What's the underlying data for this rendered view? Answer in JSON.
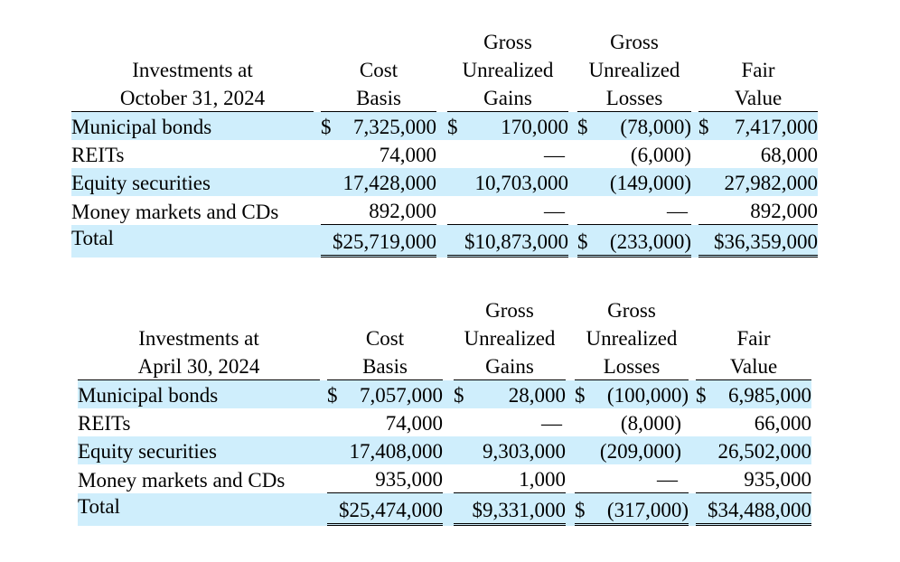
{
  "tables": [
    {
      "id": "oct2024",
      "header": {
        "label_line1": "Investments at",
        "label_line2": "October 31, 2024",
        "cost_line1": "Cost",
        "cost_line2": "Basis",
        "gains_line1": "Gross",
        "gains_line2": "Unrealized",
        "gains_line3": "Gains",
        "losses_line1": "Gross",
        "losses_line2": "Unrealized",
        "losses_line3": "Losses",
        "fair_line1": "Fair",
        "fair_line2": "Value"
      },
      "rows": [
        {
          "label": "Municipal bonds",
          "cost_cur": "$",
          "cost": "7,325,000",
          "gains_cur": "$",
          "gains": "170,000",
          "losses_cur": "$",
          "losses": "(78,000)",
          "fair_cur": "$",
          "fair": "7,417,000"
        },
        {
          "label": "REITs",
          "cost_cur": "",
          "cost": "74,000",
          "gains_cur": "",
          "gains": "—",
          "losses_cur": "",
          "losses": "(6,000)",
          "fair_cur": "",
          "fair": "68,000"
        },
        {
          "label": "Equity securities",
          "cost_cur": "",
          "cost": "17,428,000",
          "gains_cur": "",
          "gains": "10,703,000",
          "losses_cur": "",
          "losses": "(149,000)",
          "fair_cur": "",
          "fair": "27,982,000"
        },
        {
          "label": "Money markets and CDs",
          "cost_cur": "",
          "cost": "892,000",
          "gains_cur": "",
          "gains": "—",
          "losses_cur": "",
          "losses": "—",
          "fair_cur": "",
          "fair": "892,000"
        }
      ],
      "total": {
        "label": "Total",
        "cost": "$25,719,000",
        "gains": "$10,873,000",
        "losses_cur": "$",
        "losses": "(233,000)",
        "fair": "$36,359,000"
      }
    },
    {
      "id": "apr2024",
      "header": {
        "label_line1": "Investments at",
        "label_line2": "April 30, 2024",
        "cost_line1": "Cost",
        "cost_line2": "Basis",
        "gains_line1": "Gross",
        "gains_line2": "Unrealized",
        "gains_line3": "Gains",
        "losses_line1": "Gross",
        "losses_line2": "Unrealized",
        "losses_line3": "Losses",
        "fair_line1": "Fair",
        "fair_line2": "Value"
      },
      "rows": [
        {
          "label": "Municipal bonds",
          "cost_cur": "$",
          "cost": "7,057,000",
          "gains_cur": "$",
          "gains": "28,000",
          "losses_cur": "$",
          "losses": "(100,000)",
          "fair_cur": "$",
          "fair": "6,985,000"
        },
        {
          "label": "REITs",
          "cost_cur": "",
          "cost": "74,000",
          "gains_cur": "",
          "gains": "—",
          "losses_cur": "",
          "losses": "(8,000)",
          "fair_cur": "",
          "fair": "66,000"
        },
        {
          "label": "Equity securities",
          "cost_cur": "",
          "cost": "17,408,000",
          "gains_cur": "",
          "gains": "9,303,000",
          "losses_cur": "",
          "losses": "(209,000)",
          "fair_cur": "",
          "fair": "26,502,000"
        },
        {
          "label": "Money markets and CDs",
          "cost_cur": "",
          "cost": "935,000",
          "gains_cur": "",
          "gains": "1,000",
          "losses_cur": "",
          "losses": "—",
          "fair_cur": "",
          "fair": "935,000"
        }
      ],
      "total": {
        "label": "Total",
        "cost": "$25,474,000",
        "gains": "$9,331,000",
        "losses_cur": "$",
        "losses": "(317,000)",
        "fair": "$34,488,000"
      }
    }
  ],
  "colors": {
    "row_shade": "#cfeefc"
  }
}
